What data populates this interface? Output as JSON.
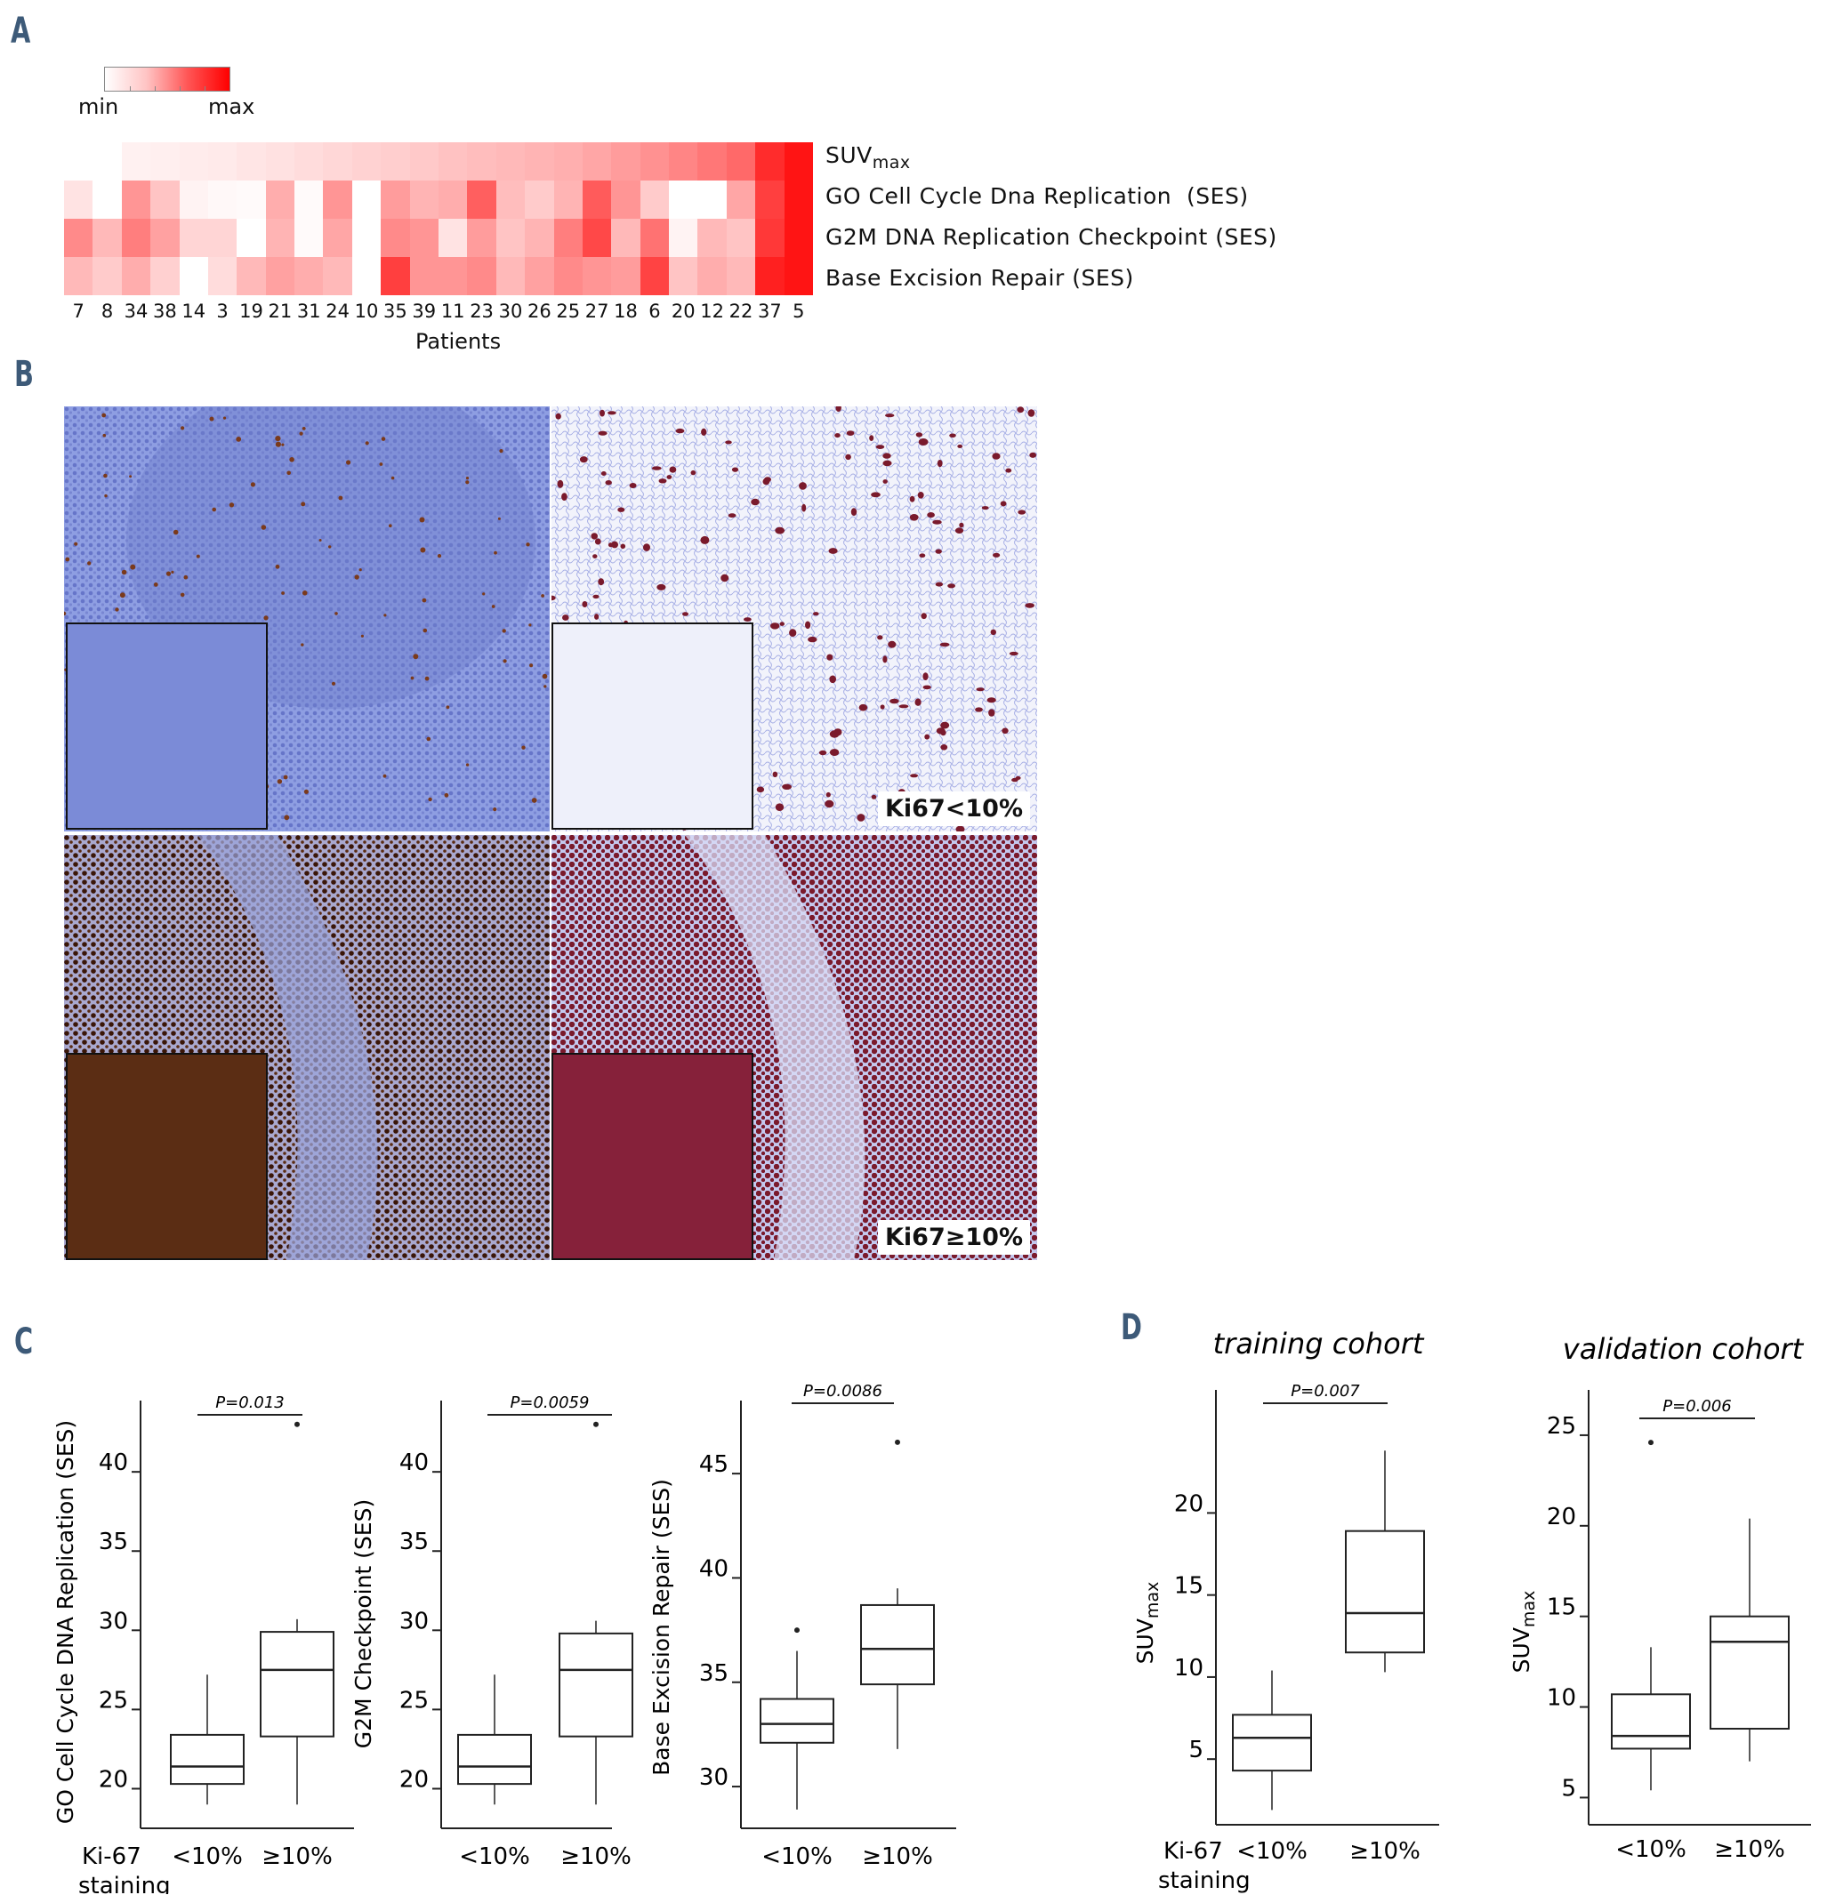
{
  "panels": {
    "a": "A",
    "b": "B",
    "c": "C",
    "d": "D"
  },
  "panel_a": {
    "legend": {
      "min": "min",
      "max": "max"
    },
    "rows": [
      {
        "label": "SUV",
        "sub": "max"
      },
      {
        "label": "GO Cell Cycle Dna Replication  (SES)",
        "sub": ""
      },
      {
        "label": "G2M DNA Replication Checkpoint (SES)",
        "sub": ""
      },
      {
        "label": "Base Excision Repair (SES)",
        "sub": ""
      }
    ],
    "patients": [
      "7",
      "8",
      "34",
      "38",
      "14",
      "3",
      "19",
      "21",
      "31",
      "24",
      "10",
      "35",
      "39",
      "11",
      "23",
      "30",
      "26",
      "25",
      "27",
      "18",
      "6",
      "20",
      "12",
      "22",
      "37",
      "5"
    ],
    "xlabel": "Patients",
    "colors": {
      "low": "#ffffff",
      "high": "#ff0000"
    }
  },
  "panel_b": {
    "labels": [
      "Ki67<10%",
      "Ki67≥10%"
    ],
    "colors": {
      "hematoxylin": "#7f8fd6",
      "dab": "#4a1e0c",
      "mask": "#7a1a2c",
      "outline": "#9da6e0"
    }
  },
  "chart_data": [
    {
      "type": "box",
      "title": "",
      "ylabel": "GO Cell Cycle DNA Replication (SES)",
      "xlabel_prefix": [
        "Ki-67",
        "staining"
      ],
      "categories": [
        "<10%",
        "≥10%"
      ],
      "ylim": [
        17.5,
        44.5
      ],
      "yticks": [
        20,
        25,
        30,
        35,
        40
      ],
      "boxes": [
        {
          "q1": 20.3,
          "median": 21.4,
          "q3": 23.4,
          "whisker_low": 19.0,
          "whisker_high": 27.2,
          "outliers": []
        },
        {
          "q1": 23.3,
          "median": 27.5,
          "q3": 29.9,
          "whisker_low": 19.0,
          "whisker_high": 30.7,
          "outliers": [
            43.0
          ]
        }
      ],
      "pvalue": "P=0.013"
    },
    {
      "type": "box",
      "title": "",
      "ylabel": "G2M Checkpoint (SES)",
      "categories": [
        "<10%",
        "≥10%"
      ],
      "ylim": [
        17.5,
        44.5
      ],
      "yticks": [
        20,
        25,
        30,
        35,
        40
      ],
      "boxes": [
        {
          "q1": 20.3,
          "median": 21.4,
          "q3": 23.4,
          "whisker_low": 19.0,
          "whisker_high": 27.2,
          "outliers": []
        },
        {
          "q1": 23.3,
          "median": 27.5,
          "q3": 29.8,
          "whisker_low": 19.0,
          "whisker_high": 30.6,
          "outliers": [
            43.0
          ]
        }
      ],
      "pvalue": "P=0.0059"
    },
    {
      "type": "box",
      "title": "",
      "ylabel": "Base Excision Repair (SES)",
      "categories": [
        "<10%",
        "≥10%"
      ],
      "ylim": [
        28.0,
        48.5
      ],
      "yticks": [
        30,
        35,
        40,
        45
      ],
      "boxes": [
        {
          "q1": 32.1,
          "median": 33.0,
          "q3": 34.2,
          "whisker_low": 28.9,
          "whisker_high": 36.5,
          "outliers": [
            37.5
          ]
        },
        {
          "q1": 34.9,
          "median": 36.6,
          "q3": 38.7,
          "whisker_low": 31.8,
          "whisker_high": 39.5,
          "outliers": [
            46.5
          ]
        }
      ],
      "pvalue": "P=0.0086"
    },
    {
      "type": "box",
      "title": "training cohort",
      "ylabel": "SUV",
      "ylabel_sub": "max",
      "xlabel_prefix": [
        "Ki-67",
        "staining"
      ],
      "categories": [
        "<10%",
        "≥10%"
      ],
      "ylim": [
        1.0,
        27.5
      ],
      "yticks": [
        5,
        10,
        15,
        20
      ],
      "boxes": [
        {
          "q1": 4.3,
          "median": 6.3,
          "q3": 7.7,
          "whisker_low": 1.9,
          "whisker_high": 10.4,
          "outliers": []
        },
        {
          "q1": 11.5,
          "median": 13.9,
          "q3": 18.9,
          "whisker_low": 10.3,
          "whisker_high": 23.8,
          "outliers": []
        }
      ],
      "pvalue": "P=0.007"
    },
    {
      "type": "box",
      "title": "validation cohort",
      "ylabel": "SUV",
      "ylabel_sub": "max",
      "categories": [
        "<10%",
        "≥10%"
      ],
      "ylim": [
        3.5,
        27.5
      ],
      "yticks": [
        5,
        10,
        15,
        20,
        25
      ],
      "boxes": [
        {
          "q1": 7.7,
          "median": 8.4,
          "q3": 10.7,
          "whisker_low": 5.4,
          "whisker_high": 13.3,
          "outliers": [
            24.6
          ]
        },
        {
          "q1": 8.8,
          "median": 13.6,
          "q3": 15.0,
          "whisker_low": 7.0,
          "whisker_high": 20.4,
          "outliers": []
        }
      ],
      "pvalue": "P=0.006"
    }
  ]
}
